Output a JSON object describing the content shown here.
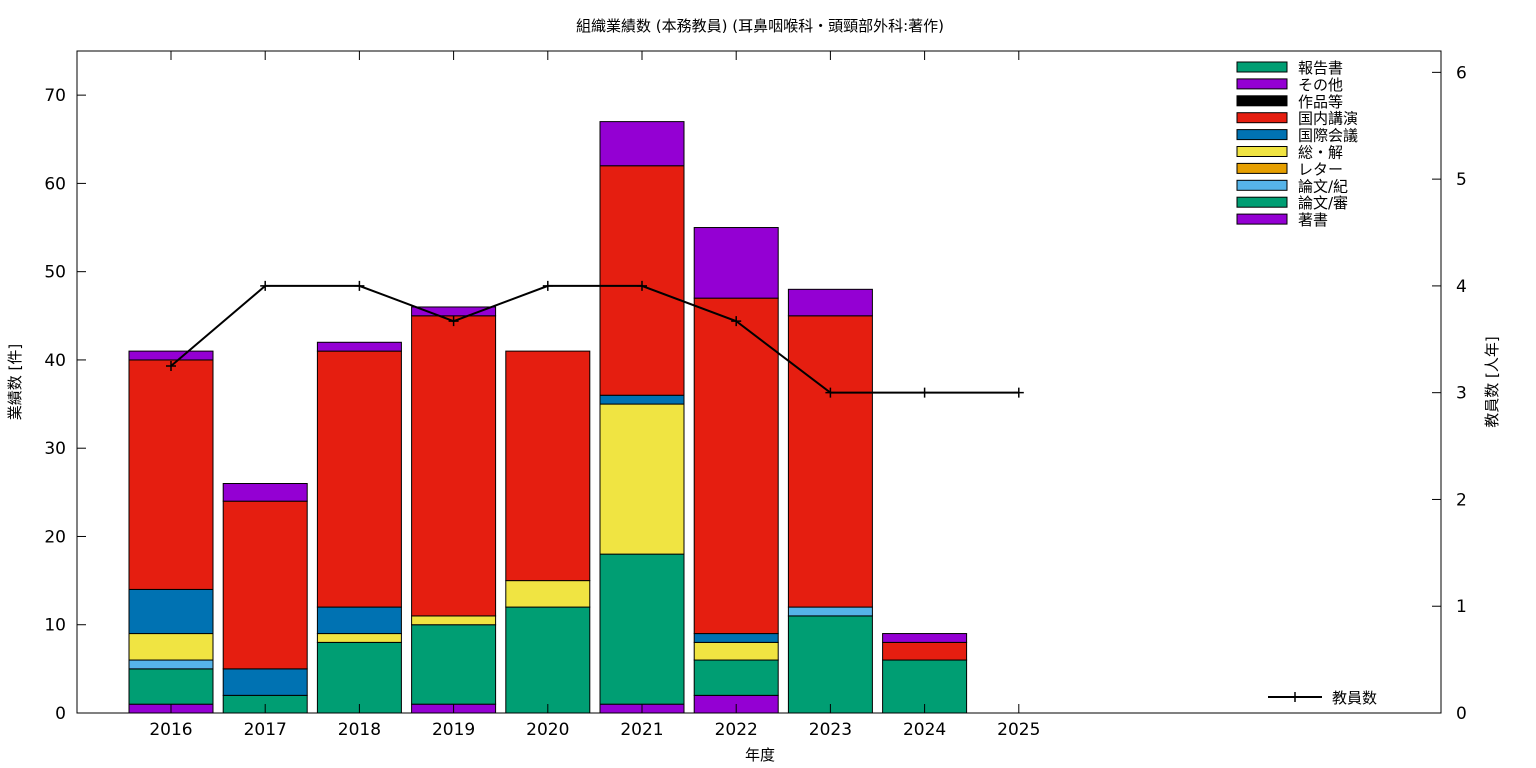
{
  "chart_data": {
    "type": "bar",
    "stacked": true,
    "title": "組織業績数 (本務教員) (耳鼻咽喉科・頭頸部外科:著作)",
    "xlabel": "年度",
    "ylabel": "業績数 [件]",
    "y2label": "教員数 [人年]",
    "ylim": [
      0,
      75
    ],
    "y2lim": [
      0,
      6.2
    ],
    "yticks": [
      0,
      10,
      20,
      30,
      40,
      50,
      60,
      70
    ],
    "y2ticks": [
      0,
      1,
      2,
      3,
      4,
      5,
      6
    ],
    "categories": [
      "2016",
      "2017",
      "2018",
      "2019",
      "2020",
      "2021",
      "2022",
      "2023",
      "2024",
      "2025"
    ],
    "legend_position": "top-right",
    "series": [
      {
        "name": "著書",
        "color": "#9400d3",
        "values": [
          1,
          0,
          0,
          1,
          0,
          1,
          2,
          0,
          0,
          0
        ]
      },
      {
        "name": "論文/審",
        "color": "#009e73",
        "values": [
          4,
          2,
          8,
          9,
          12,
          17,
          4,
          11,
          6,
          0
        ]
      },
      {
        "name": "論文/紀",
        "color": "#56b4e9",
        "values": [
          1,
          0,
          0,
          0,
          0,
          0,
          0,
          1,
          0,
          0
        ]
      },
      {
        "name": "レター",
        "color": "#e69f00",
        "values": [
          0,
          0,
          0,
          0,
          0,
          0,
          0,
          0,
          0,
          0
        ]
      },
      {
        "name": "総・解",
        "color": "#f0e442",
        "values": [
          3,
          0,
          1,
          1,
          3,
          17,
          2,
          0,
          0,
          0
        ]
      },
      {
        "name": "国際会議",
        "color": "#0072b2",
        "values": [
          5,
          3,
          3,
          0,
          0,
          1,
          1,
          0,
          0,
          0
        ]
      },
      {
        "name": "国内講演",
        "color": "#e51e10",
        "values": [
          26,
          19,
          29,
          34,
          26,
          26,
          38,
          33,
          2,
          0
        ]
      },
      {
        "name": "作品等",
        "color": "#000000",
        "values": [
          0,
          0,
          0,
          0,
          0,
          0,
          0,
          0,
          0,
          0
        ]
      },
      {
        "name": "その他",
        "color": "#9400d3",
        "values": [
          1,
          2,
          1,
          1,
          0,
          5,
          8,
          3,
          1,
          0
        ]
      },
      {
        "name": "報告書",
        "color": "#009e73",
        "values": [
          0,
          0,
          0,
          0,
          0,
          0,
          0,
          0,
          0,
          0
        ]
      }
    ],
    "line_series": {
      "name": "教員数",
      "color": "#000000",
      "values": [
        3.25,
        4,
        4,
        3.67,
        4,
        4,
        3.67,
        3,
        3,
        3
      ]
    }
  }
}
